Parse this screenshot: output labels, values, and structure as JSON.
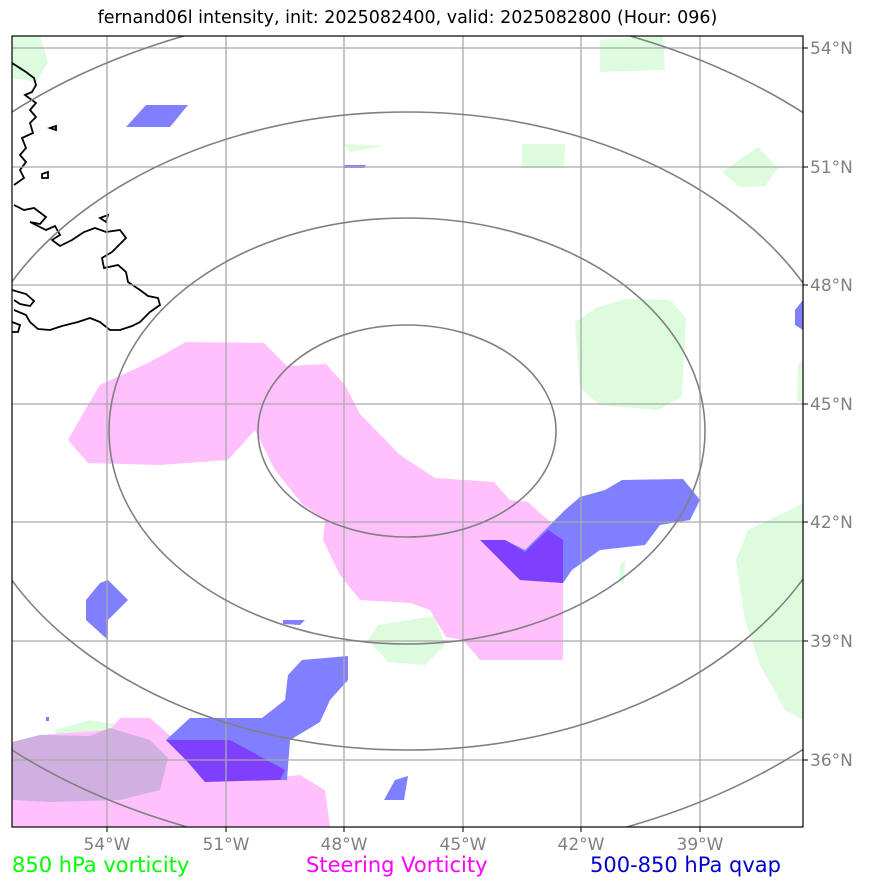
{
  "title": "fernand06l intensity, init: 2025082400, valid: 2025082800 (Hour: 096)",
  "longitude_labels": [
    "54°W",
    "51°W",
    "48°W",
    "45°W",
    "42°W",
    "39°W"
  ],
  "latitude_labels": [
    "54°N",
    "51°N",
    "48°N",
    "45°N",
    "42°N",
    "39°N",
    "36°N"
  ],
  "legend": {
    "vort850": "850 hPa vorticity",
    "steering": "Steering Vorticity",
    "qvap": "500-850 hPa qvap"
  },
  "colors": {
    "vort850": "#00ff00",
    "steering": "#ff00ff",
    "qvap": "#0000cd",
    "vort850_fill": "#ddfbdd",
    "steering_fill": "#ffc0fc",
    "qvap_fill": "#7f7fff",
    "overlap_fill": "#7f3fff",
    "grid": "#a9a9a9",
    "range_rings": "#808080",
    "coastline": "#000000"
  },
  "map": {
    "projection": "lat-lon",
    "lon_range": [
      "56.5°W",
      "36.5°W"
    ],
    "lat_range": [
      "34.5°N",
      "54.5°N"
    ],
    "grid": true,
    "range_rings": 4
  }
}
